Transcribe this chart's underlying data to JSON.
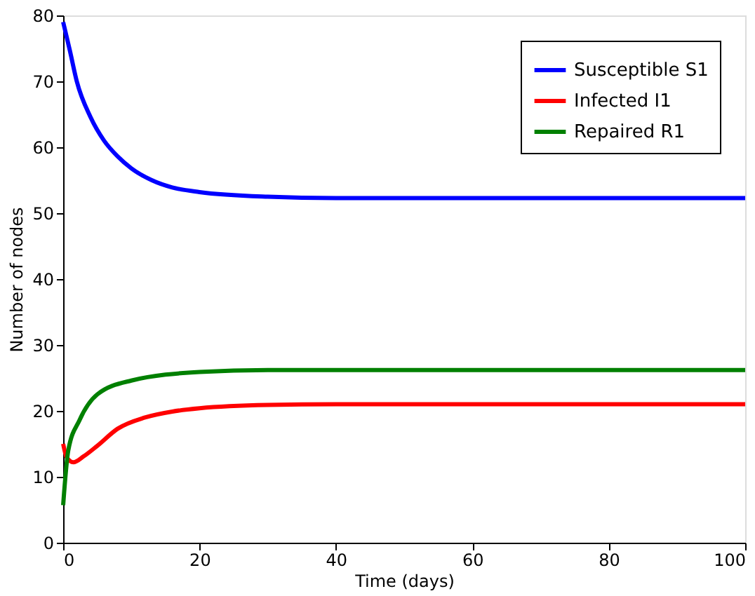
{
  "chart_data": {
    "type": "line",
    "xlabel": "Time (days)",
    "ylabel": "Number of nodes",
    "xlim": [
      0,
      100
    ],
    "ylim": [
      0,
      80
    ],
    "xticks": [
      0,
      20,
      40,
      60,
      80,
      100
    ],
    "yticks": [
      0,
      10,
      20,
      30,
      40,
      50,
      60,
      70,
      80
    ],
    "grid": false,
    "legend": "top right",
    "line_style": "solid",
    "marker": "none",
    "series": [
      {
        "name": "Susceptible S1",
        "color": "#0000ff",
        "x": [
          0,
          1,
          2,
          4,
          6,
          8,
          10,
          13,
          16,
          20,
          30,
          40,
          100
        ],
        "values": [
          79,
          74.6,
          70,
          64.6,
          61,
          58.6,
          56.8,
          55,
          53.9,
          53.2,
          52.5,
          52.3,
          52.3
        ]
      },
      {
        "name": "Infected I1",
        "color": "#ff0000",
        "x": [
          0,
          0.5,
          1.5,
          3,
          5,
          8,
          12,
          16,
          20,
          30,
          40,
          100
        ],
        "values": [
          15,
          13,
          12.2,
          13.1,
          14.7,
          17.3,
          19,
          19.9,
          20.4,
          20.9,
          21,
          21
        ]
      },
      {
        "name": "Repaired R1",
        "color": "#008000",
        "x": [
          0,
          0.75,
          2.4,
          5,
          10,
          20,
          30,
          100
        ],
        "values": [
          5.7,
          14,
          18.6,
          22.5,
          24.6,
          25.9,
          26.2,
          26.2
        ]
      }
    ]
  }
}
